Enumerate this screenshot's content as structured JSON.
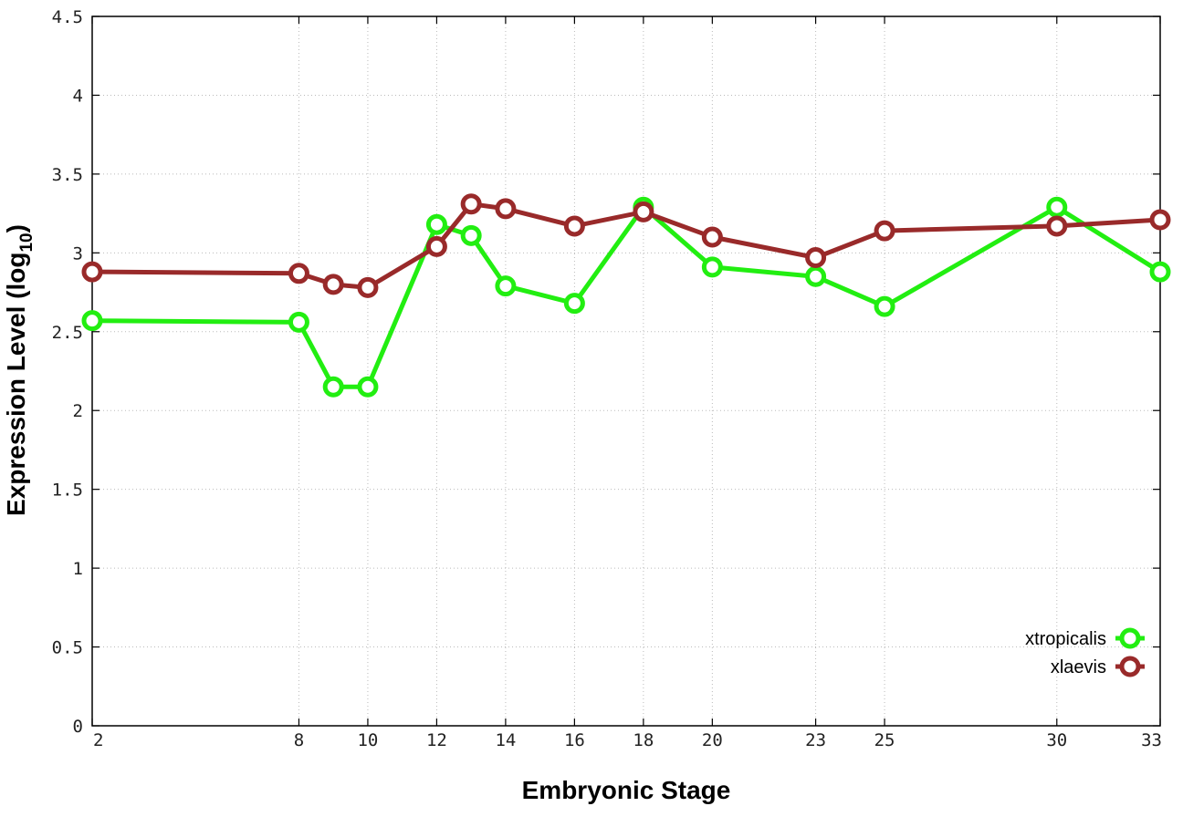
{
  "chart_data": {
    "type": "line",
    "xlabel": "Embryonic Stage",
    "ylabel_main": "Expression Level (log",
    "ylabel_sub": "10",
    "ylabel_close": ")",
    "x_tick_values": [
      2,
      8,
      10,
      12,
      14,
      16,
      18,
      20,
      23,
      25,
      30,
      33
    ],
    "y_tick_values": [
      0,
      0.5,
      1,
      1.5,
      2,
      2.5,
      3,
      3.5,
      4,
      4.5
    ],
    "y_tick_labels": [
      "0",
      "0.5",
      "1",
      "1.5",
      "2",
      "2.5",
      "3",
      "3.5",
      "4",
      "4.5"
    ],
    "xlim": [
      2,
      33
    ],
    "ylim": [
      0,
      4.5
    ],
    "grid": true,
    "legend_position": "bottom-right",
    "x": [
      2,
      8,
      9,
      10,
      12,
      13,
      14,
      16,
      18,
      20,
      23,
      25,
      30,
      33
    ],
    "series": [
      {
        "name": "xtropicalis",
        "color": "#22ee11",
        "values": [
          2.57,
          2.56,
          2.15,
          2.15,
          3.18,
          3.11,
          2.79,
          2.68,
          3.29,
          2.91,
          2.85,
          2.66,
          3.29,
          2.88
        ]
      },
      {
        "name": "xlaevis",
        "color": "#992a2a",
        "values": [
          2.88,
          2.87,
          2.8,
          2.78,
          3.04,
          3.31,
          3.28,
          3.17,
          3.26,
          3.1,
          2.97,
          3.14,
          3.17,
          3.21
        ]
      }
    ]
  }
}
